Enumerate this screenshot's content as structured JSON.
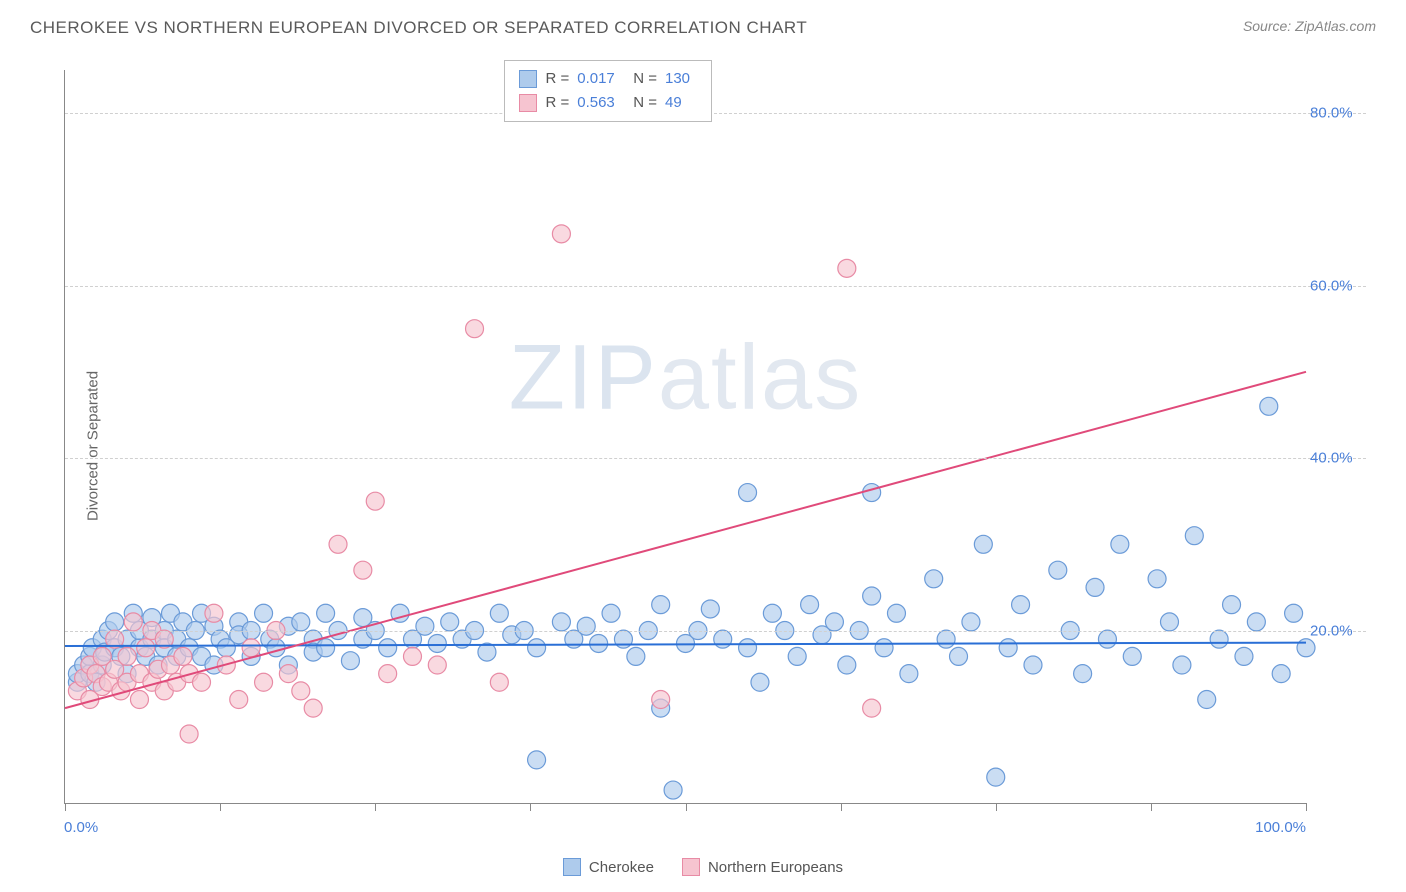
{
  "title": "CHEROKEE VS NORTHERN EUROPEAN DIVORCED OR SEPARATED CORRELATION CHART",
  "source_prefix": "Source: ",
  "source_name": "ZipAtlas.com",
  "y_axis_title": "Divorced or Separated",
  "watermark_a": "ZIP",
  "watermark_b": "atlas",
  "chart": {
    "type": "scatter",
    "xlim": [
      0,
      100
    ],
    "ylim": [
      0,
      85
    ],
    "y_ticks": [
      20,
      40,
      60,
      80
    ],
    "y_tick_labels": [
      "20.0%",
      "40.0%",
      "60.0%",
      "80.0%"
    ],
    "x_ticks": [
      0,
      12.5,
      25,
      37.5,
      50,
      62.5,
      75,
      87.5,
      100
    ],
    "x_label_min": "0.0%",
    "x_label_max": "100.0%",
    "background_color": "#ffffff",
    "grid_color": "#d0d0d0",
    "axis_color": "#888888",
    "marker_radius": 9,
    "marker_stroke_width": 1.2,
    "trend_line_width": 2,
    "series": [
      {
        "name": "Cherokee",
        "fill": "#aecbec",
        "stroke": "#6b9bd8",
        "fill_opacity": 0.65,
        "trend": {
          "y_at_x0": 18.2,
          "y_at_x100": 18.6,
          "color": "#2a6fd6"
        },
        "points": [
          [
            1,
            14
          ],
          [
            1,
            15
          ],
          [
            1.5,
            16
          ],
          [
            2,
            15
          ],
          [
            2,
            17
          ],
          [
            2.2,
            18
          ],
          [
            2.5,
            14
          ],
          [
            3,
            19
          ],
          [
            3,
            16
          ],
          [
            3.2,
            17.5
          ],
          [
            3.5,
            20
          ],
          [
            4,
            18
          ],
          [
            4,
            21
          ],
          [
            4.5,
            17
          ],
          [
            5,
            19
          ],
          [
            5,
            15
          ],
          [
            5.5,
            22
          ],
          [
            6,
            18
          ],
          [
            6,
            20
          ],
          [
            6.5,
            17
          ],
          [
            7,
            19
          ],
          [
            7,
            21.5
          ],
          [
            7.5,
            16
          ],
          [
            8,
            20
          ],
          [
            8,
            18
          ],
          [
            8.5,
            22
          ],
          [
            9,
            17
          ],
          [
            9,
            19
          ],
          [
            9.5,
            21
          ],
          [
            10,
            18
          ],
          [
            10.5,
            20
          ],
          [
            11,
            17
          ],
          [
            11,
            22
          ],
          [
            12,
            16
          ],
          [
            12,
            20.5
          ],
          [
            12.5,
            19
          ],
          [
            13,
            18
          ],
          [
            14,
            21
          ],
          [
            14,
            19.5
          ],
          [
            15,
            20
          ],
          [
            15,
            17
          ],
          [
            16,
            22
          ],
          [
            16.5,
            19
          ],
          [
            17,
            18
          ],
          [
            18,
            20.5
          ],
          [
            18,
            16
          ],
          [
            19,
            21
          ],
          [
            20,
            19
          ],
          [
            20,
            17.5
          ],
          [
            21,
            22
          ],
          [
            21,
            18
          ],
          [
            22,
            20
          ],
          [
            23,
            16.5
          ],
          [
            24,
            21.5
          ],
          [
            24,
            19
          ],
          [
            25,
            20
          ],
          [
            26,
            18
          ],
          [
            27,
            22
          ],
          [
            28,
            19
          ],
          [
            29,
            20.5
          ],
          [
            30,
            18.5
          ],
          [
            31,
            21
          ],
          [
            32,
            19
          ],
          [
            33,
            20
          ],
          [
            34,
            17.5
          ],
          [
            35,
            22
          ],
          [
            36,
            19.5
          ],
          [
            37,
            20
          ],
          [
            38,
            18
          ],
          [
            38,
            5
          ],
          [
            40,
            21
          ],
          [
            41,
            19
          ],
          [
            42,
            20.5
          ],
          [
            43,
            18.5
          ],
          [
            44,
            22
          ],
          [
            45,
            19
          ],
          [
            46,
            17
          ],
          [
            47,
            20
          ],
          [
            48,
            11
          ],
          [
            48,
            23
          ],
          [
            49,
            1.5
          ],
          [
            50,
            18.5
          ],
          [
            51,
            20
          ],
          [
            52,
            22.5
          ],
          [
            53,
            19
          ],
          [
            55,
            36
          ],
          [
            55,
            18
          ],
          [
            56,
            14
          ],
          [
            57,
            22
          ],
          [
            58,
            20
          ],
          [
            59,
            17
          ],
          [
            60,
            23
          ],
          [
            61,
            19.5
          ],
          [
            62,
            21
          ],
          [
            63,
            16
          ],
          [
            64,
            20
          ],
          [
            65,
            24
          ],
          [
            65,
            36
          ],
          [
            66,
            18
          ],
          [
            67,
            22
          ],
          [
            68,
            15
          ],
          [
            70,
            26
          ],
          [
            71,
            19
          ],
          [
            72,
            17
          ],
          [
            73,
            21
          ],
          [
            74,
            30
          ],
          [
            75,
            3
          ],
          [
            76,
            18
          ],
          [
            77,
            23
          ],
          [
            78,
            16
          ],
          [
            80,
            27
          ],
          [
            81,
            20
          ],
          [
            82,
            15
          ],
          [
            83,
            25
          ],
          [
            84,
            19
          ],
          [
            85,
            30
          ],
          [
            86,
            17
          ],
          [
            88,
            26
          ],
          [
            89,
            21
          ],
          [
            90,
            16
          ],
          [
            91,
            31
          ],
          [
            92,
            12
          ],
          [
            93,
            19
          ],
          [
            94,
            23
          ],
          [
            95,
            17
          ],
          [
            96,
            21
          ],
          [
            97,
            46
          ],
          [
            98,
            15
          ],
          [
            99,
            22
          ],
          [
            100,
            18
          ]
        ]
      },
      {
        "name": "Northern Europeans",
        "fill": "#f6c4d0",
        "stroke": "#e88ba5",
        "fill_opacity": 0.65,
        "trend": {
          "y_at_x0": 11,
          "y_at_x100": 50,
          "color": "#e04a7a"
        },
        "points": [
          [
            1,
            13
          ],
          [
            1.5,
            14.5
          ],
          [
            2,
            12
          ],
          [
            2,
            16
          ],
          [
            2.5,
            15
          ],
          [
            3,
            13.5
          ],
          [
            3,
            17
          ],
          [
            3.5,
            14
          ],
          [
            4,
            19
          ],
          [
            4,
            15.5
          ],
          [
            4.5,
            13
          ],
          [
            5,
            17
          ],
          [
            5,
            14
          ],
          [
            5.5,
            21
          ],
          [
            6,
            15
          ],
          [
            6,
            12
          ],
          [
            6.5,
            18
          ],
          [
            7,
            14
          ],
          [
            7,
            20
          ],
          [
            7.5,
            15.5
          ],
          [
            8,
            13
          ],
          [
            8,
            19
          ],
          [
            8.5,
            16
          ],
          [
            9,
            14
          ],
          [
            9.5,
            17
          ],
          [
            10,
            15
          ],
          [
            10,
            8
          ],
          [
            11,
            14
          ],
          [
            12,
            22
          ],
          [
            13,
            16
          ],
          [
            14,
            12
          ],
          [
            15,
            18
          ],
          [
            16,
            14
          ],
          [
            17,
            20
          ],
          [
            18,
            15
          ],
          [
            19,
            13
          ],
          [
            20,
            11
          ],
          [
            22,
            30
          ],
          [
            24,
            27
          ],
          [
            25,
            35
          ],
          [
            26,
            15
          ],
          [
            28,
            17
          ],
          [
            30,
            16
          ],
          [
            33,
            55
          ],
          [
            35,
            14
          ],
          [
            40,
            66
          ],
          [
            48,
            12
          ],
          [
            63,
            62
          ],
          [
            65,
            11
          ]
        ]
      }
    ]
  },
  "stats": [
    {
      "swatch_fill": "#aecbec",
      "swatch_stroke": "#6b9bd8",
      "R": "0.017",
      "N": "130"
    },
    {
      "swatch_fill": "#f6c4d0",
      "swatch_stroke": "#e88ba5",
      "R": "0.563",
      "N": "49"
    }
  ],
  "legend": [
    {
      "label": "Cherokee",
      "fill": "#aecbec",
      "stroke": "#6b9bd8"
    },
    {
      "label": "Northern Europeans",
      "fill": "#f6c4d0",
      "stroke": "#e88ba5"
    }
  ]
}
